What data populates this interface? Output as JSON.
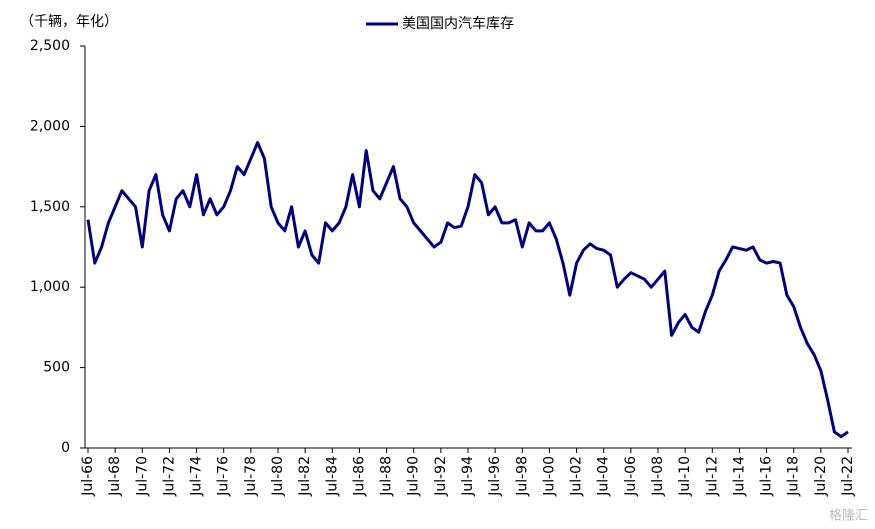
{
  "chart_data": {
    "type": "line",
    "unit_label": "（千辆，年化）",
    "watermark": "格隆汇",
    "categories": [
      "Jul-66",
      null,
      null,
      null,
      "Jul-68",
      null,
      null,
      null,
      "Jul-70",
      null,
      null,
      null,
      "Jul-72",
      null,
      null,
      null,
      "Jul-74",
      null,
      null,
      null,
      "Jul-76",
      null,
      null,
      null,
      "Jul-78",
      null,
      null,
      null,
      "Jul-80",
      null,
      null,
      null,
      "Jul-82",
      null,
      null,
      null,
      "Jul-84",
      null,
      null,
      null,
      "Jul-86",
      null,
      null,
      null,
      "Jul-88",
      null,
      null,
      null,
      "Jul-90",
      null,
      null,
      null,
      "Jul-92",
      null,
      null,
      null,
      "Jul-94",
      null,
      null,
      null,
      "Jul-96",
      null,
      null,
      null,
      "Jul-98",
      null,
      null,
      null,
      "Jul-00",
      null,
      null,
      null,
      "Jul-02",
      null,
      null,
      null,
      "Jul-04",
      null,
      null,
      null,
      "Jul-06",
      null,
      null,
      null,
      "Jul-08",
      null,
      null,
      null,
      "Jul-10",
      null,
      null,
      null,
      "Jul-12",
      null,
      null,
      null,
      "Jul-14",
      null,
      null,
      null,
      "Jul-16",
      null,
      null,
      null,
      "Jul-18",
      null,
      null,
      null,
      "Jul-20",
      null,
      null,
      null,
      "Jul-22"
    ],
    "series": [
      {
        "name": "美国国内汽车库存",
        "color": "#000080",
        "values": [
          1420,
          1150,
          1250,
          1400,
          1500,
          1600,
          1550,
          1500,
          1250,
          1600,
          1700,
          1450,
          1350,
          1550,
          1600,
          1500,
          1700,
          1450,
          1550,
          1450,
          1500,
          1600,
          1750,
          1700,
          1800,
          1900,
          1800,
          1500,
          1400,
          1350,
          1500,
          1250,
          1350,
          1200,
          1150,
          1400,
          1350,
          1400,
          1500,
          1700,
          1500,
          1850,
          1600,
          1550,
          1650,
          1750,
          1550,
          1500,
          1400,
          1350,
          1300,
          1250,
          1280,
          1400,
          1370,
          1380,
          1500,
          1700,
          1650,
          1450,
          1500,
          1400,
          1400,
          1420,
          1250,
          1400,
          1350,
          1350,
          1400,
          1300,
          1150,
          950,
          1150,
          1230,
          1270,
          1240,
          1230,
          1200,
          1000,
          1050,
          1090,
          1070,
          1050,
          1000,
          1050,
          1100,
          700,
          780,
          830,
          750,
          720,
          850,
          950,
          1100,
          1170,
          1250,
          1240,
          1230,
          1250,
          1170,
          1150,
          1160,
          1150,
          950,
          880,
          750,
          650,
          580,
          480,
          300,
          100,
          70,
          100
        ]
      }
    ],
    "ylim": [
      0,
      2500
    ],
    "yticks": [
      0,
      500,
      {
        "value": 1000,
        "label": "1,000"
      },
      {
        "value": 1500,
        "label": "1,500"
      },
      {
        "value": 2000,
        "label": "2,000"
      },
      {
        "value": 2500,
        "label": "2,500"
      }
    ],
    "legend": "top"
  }
}
